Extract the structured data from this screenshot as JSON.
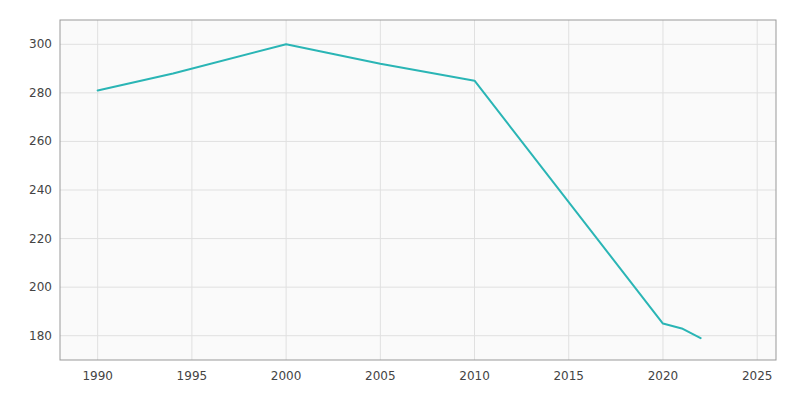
{
  "chart_data": {
    "type": "line",
    "x": [
      1990,
      1994,
      2000,
      2005,
      2010,
      2020,
      2021,
      2022
    ],
    "values": [
      281,
      288,
      300,
      292,
      285,
      185,
      183,
      179
    ],
    "color": "#2ab5b5",
    "xlim": [
      1988,
      2026
    ],
    "ylim": [
      170,
      310
    ],
    "xticks": [
      1990,
      1995,
      2000,
      2005,
      2010,
      2015,
      2020,
      2025
    ],
    "yticks": [
      180,
      200,
      220,
      240,
      260,
      280,
      300
    ],
    "grid": true
  }
}
